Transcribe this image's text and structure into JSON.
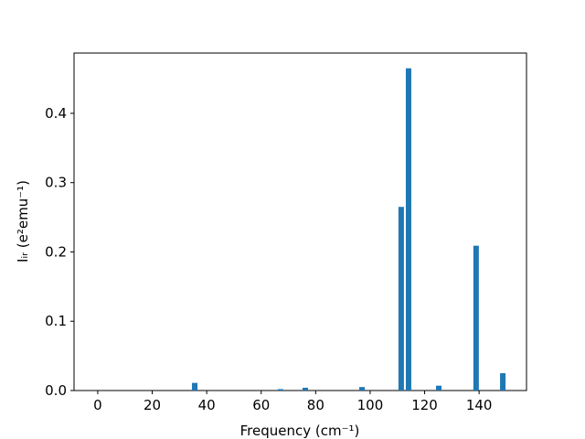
{
  "chart_data": {
    "type": "bar",
    "xlabel": "Frequency (cm⁻¹)",
    "ylabel": "Iᵢᵣ (e²emu⁻¹)",
    "x": [
      35.6,
      67.1,
      76.2,
      97.0,
      111.4,
      114.1,
      125.2,
      138.9,
      148.7
    ],
    "values": [
      0.011,
      0.002,
      0.004,
      0.005,
      0.265,
      0.465,
      0.007,
      0.209,
      0.025
    ],
    "color": "#1f77b4",
    "xlim": [
      -8.7,
      157.4
    ],
    "xticks": [
      0,
      20,
      40,
      60,
      80,
      100,
      120,
      140
    ],
    "ylim": [
      0,
      0.487
    ],
    "yticks": [
      {
        "value": 0,
        "label": "0.0"
      },
      0.1,
      0.2,
      0.3,
      0.4
    ],
    "grid": false
  }
}
